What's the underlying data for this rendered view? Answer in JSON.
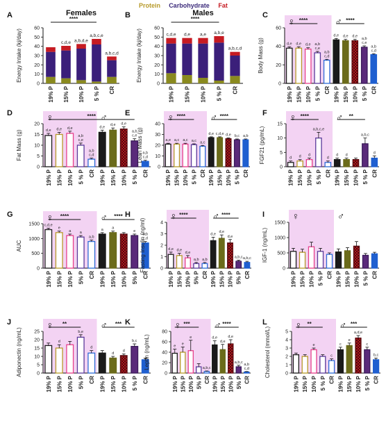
{
  "legend": {
    "items": [
      {
        "label": "Protein",
        "color": "#b79a2a"
      },
      {
        "label": "Carbohydrate",
        "color": "#3b2a7a"
      },
      {
        "label": "Fat",
        "color": "#c61b22"
      }
    ]
  },
  "chart_data": [
    {
      "type": "bar",
      "letter": "A",
      "title": "Females",
      "ylabel": "Energy Intake (kj/day)",
      "categories": [
        "19% P",
        "15% P",
        "10% P",
        "5 % P",
        "CR"
      ],
      "ylim": [
        0,
        60
      ],
      "yticks": [
        0,
        10,
        20,
        30,
        40,
        50,
        60
      ],
      "stacked": true,
      "series": [
        {
          "name": "Protein",
          "values": [
            7,
            5.5,
            3.5,
            2,
            7
          ]
        },
        {
          "name": "Carbohydrate",
          "values": [
            27,
            30,
            34,
            40,
            18
          ]
        },
        {
          "name": "Fat",
          "values": [
            5,
            5,
            5,
            6,
            4
          ]
        }
      ],
      "labels": [
        "",
        "c,d,e",
        "a,b,d,e",
        "a,b,c,e",
        "a,b,c,d"
      ],
      "sig": [
        {
          "text": "****",
          "from": 0,
          "to": 3
        }
      ]
    },
    {
      "type": "bar",
      "letter": "B",
      "title": "Males",
      "ylabel": "Energy Intake (kj/day)",
      "categories": [
        "19% P",
        "15% P",
        "10% P",
        "5 % P",
        "CR"
      ],
      "ylim": [
        0,
        60
      ],
      "yticks": [
        0,
        10,
        20,
        30,
        40,
        50,
        60
      ],
      "stacked": true,
      "series": [
        {
          "name": "Protein",
          "values": [
            11,
            9,
            6,
            3,
            8
          ]
        },
        {
          "name": "Carbohydrate",
          "values": [
            32,
            34,
            37,
            41,
            22
          ]
        },
        {
          "name": "Fat",
          "values": [
            6,
            6,
            6,
            7,
            4
          ]
        }
      ],
      "labels": [
        "c,d,e",
        "d,e",
        "a,e",
        "a,b,e",
        "a,b,c,d"
      ],
      "sig": [
        {
          "text": "****",
          "from": 0,
          "to": 3
        }
      ]
    },
    {
      "type": "bar",
      "letter": "C",
      "ylabel": "Body Mass (g)",
      "categories": [
        "19% P",
        "15% P",
        "10% P",
        "5 % P",
        "CR",
        "19% P",
        "15% P",
        "10% P",
        "5 % P",
        "CR"
      ],
      "ylim": [
        0,
        60
      ],
      "yticks": [
        0,
        20,
        40,
        60
      ],
      "values": [
        38,
        38,
        37,
        33,
        25,
        47,
        46,
        46,
        39,
        31
      ],
      "errors": [
        1.5,
        1.5,
        1.5,
        1.5,
        1,
        1.5,
        1.5,
        1.5,
        1.5,
        1
      ],
      "labels": [
        "d,e",
        "d,e",
        "d,e",
        "a,b c,e",
        "a,b c,d",
        "d,e",
        "d,e",
        "d,e",
        "a,b c,e",
        "a,b c,d"
      ],
      "sig": [
        {
          "text": "****",
          "from": 0,
          "to": 3
        },
        {
          "text": "****",
          "from": 5,
          "to": 8
        }
      ]
    },
    {
      "type": "bar",
      "letter": "D",
      "ylabel": "Fat Mass (g)",
      "categories": [
        "19% P",
        "15% P",
        "10% P",
        "5 % P",
        "CR",
        "19% P",
        "15% P",
        "10% P",
        "5 % P",
        "CR"
      ],
      "ylim": [
        0,
        20
      ],
      "yticks": [
        0,
        5,
        10,
        15,
        20
      ],
      "values": [
        14.5,
        15,
        15.5,
        10,
        3.5,
        16,
        17,
        17.5,
        12,
        2.5
      ],
      "errors": [
        1,
        1,
        1,
        1,
        0.5,
        1,
        1,
        1,
        1,
        0.5
      ],
      "labels": [
        "d,e",
        "d,e",
        "d,e",
        "a,b c,e",
        "a,b c,d",
        "d,e",
        "d,e",
        "d,e",
        "a,b c,e",
        "a,b c,d"
      ],
      "sig": [
        {
          "text": "****",
          "from": 0,
          "to": 8
        }
      ]
    },
    {
      "type": "bar",
      "letter": "E",
      "ylabel": "Lean Mass (g)",
      "categories": [
        "19% P",
        "15% P",
        "10% P",
        "5 % P",
        "CR",
        "19% P",
        "15% P",
        "10% P",
        "5 % P",
        "CR"
      ],
      "ylim": [
        0,
        40
      ],
      "yticks": [
        0,
        10,
        20,
        30,
        40
      ],
      "values": [
        21,
        21,
        21,
        20.5,
        19,
        27,
        27,
        26,
        25,
        25
      ],
      "errors": [
        0.8,
        0.8,
        0.8,
        0.8,
        0.8,
        0.8,
        0.8,
        0.8,
        0.8,
        0.8
      ],
      "labels": [
        "a,e",
        "a,c",
        "a,c",
        "a,c",
        "a,c",
        "d,e",
        "c,d,e",
        "d,e",
        "b,c",
        "a,b"
      ],
      "sig": [
        {
          "text": "****",
          "from": 0,
          "to": 3
        },
        {
          "text": "****",
          "from": 5,
          "to": 8
        }
      ]
    },
    {
      "type": "bar",
      "letter": "F",
      "ylabel": "FGF21 (pg/mL)",
      "categories": [
        "19% P",
        "15% P",
        "10% P",
        "5 % P",
        "CR",
        "19% P",
        "15% P",
        "10% P",
        "5 % P",
        "CR"
      ],
      "ylim": [
        0,
        15
      ],
      "yticks": [
        0,
        5,
        10,
        15
      ],
      "values": [
        1.5,
        2,
        2.5,
        10,
        1.5,
        2.5,
        2.5,
        2.5,
        8,
        3
      ],
      "errors": [
        0.5,
        0.5,
        0.5,
        2,
        0.5,
        0.5,
        0.5,
        0.5,
        2,
        0.8
      ],
      "labels": [
        "d",
        "d",
        "d",
        "a,b,c,e",
        "d",
        "d",
        "d",
        "",
        "a,b,c",
        "d"
      ],
      "sig": [
        {
          "text": "****",
          "from": 0,
          "to": 3
        },
        {
          "text": "**",
          "from": 5,
          "to": 8
        }
      ]
    },
    {
      "type": "bar",
      "letter": "G",
      "ylabel": "AUC",
      "categories": [
        "19% P",
        "15% P",
        "10% P",
        "5% P",
        "CR",
        "19% P",
        "15% P",
        "10% P",
        "5% P",
        "CR"
      ],
      "ylim": [
        0,
        1500
      ],
      "yticks": [
        0,
        500,
        1000,
        1500
      ],
      "values": [
        1300,
        1200,
        1100,
        1050,
        900,
        1150,
        1200,
        1150,
        1100,
        850
      ],
      "errors": [
        50,
        50,
        50,
        50,
        50,
        50,
        50,
        50,
        50,
        50
      ],
      "labels": [
        "c,d,e",
        "e",
        "a",
        "a",
        "a,b",
        "a",
        "a",
        "",
        "e",
        "a,b c,d"
      ],
      "sig": [
        {
          "text": "****",
          "from": 0,
          "to": 3
        },
        {
          "text": "****",
          "from": 5,
          "to": 8
        }
      ]
    },
    {
      "type": "bar",
      "letter": "H",
      "ylabel": "Fasting Insulin (ng/ml)",
      "categories": [
        "19% P",
        "15% P",
        "10% P",
        "5% P",
        "CR",
        "19% P",
        "15% P",
        "10% P",
        "5% P",
        "CR"
      ],
      "ylim": [
        0,
        4
      ],
      "yticks": [
        0,
        1,
        2,
        3,
        4
      ],
      "values": [
        1.2,
        1.1,
        0.9,
        0.4,
        0.4,
        2.4,
        2.6,
        2.2,
        0.6,
        0.5
      ],
      "errors": [
        0.2,
        0.2,
        0.2,
        0.1,
        0.1,
        0.3,
        0.3,
        0.3,
        0.1,
        0.1
      ],
      "labels": [
        "d,e",
        "d,e",
        "d,e",
        "a,b",
        "a,b",
        "d,e",
        "d,e",
        "d,e",
        "a,b,c",
        "a,b,c"
      ],
      "sig": [
        {
          "text": "****",
          "from": 0,
          "to": 3
        },
        {
          "text": "****",
          "from": 5,
          "to": 8
        }
      ]
    },
    {
      "type": "bar",
      "letter": "I",
      "ylabel": "IGF-1 (ng/mL)",
      "categories": [
        "19% P",
        "15% P",
        "10% P",
        "5 % P",
        "CR",
        "19% P",
        "15% P",
        "10% P",
        "5 % P",
        "CR"
      ],
      "ylim": [
        0,
        1500
      ],
      "yticks": [
        0,
        500,
        1000,
        1500
      ],
      "values": [
        550,
        520,
        700,
        550,
        450,
        530,
        570,
        720,
        420,
        470
      ],
      "errors": [
        100,
        100,
        150,
        100,
        50,
        100,
        100,
        150,
        60,
        50
      ],
      "labels": [
        "",
        "",
        "",
        "",
        "",
        "",
        "",
        "",
        "",
        ""
      ],
      "sig": []
    },
    {
      "type": "bar",
      "letter": "J",
      "ylabel": "Adiponectin (ng/mL)",
      "categories": [
        "19% P",
        "15% P",
        "10% P",
        "5% P",
        "CR",
        "19% P",
        "15% P",
        "10% P",
        "5 % P",
        "CR"
      ],
      "ylim": [
        0,
        25
      ],
      "yticks": [
        0,
        5,
        10,
        15,
        20,
        25
      ],
      "values": [
        16.5,
        15,
        17,
        21.5,
        12,
        12,
        9,
        10.5,
        16,
        8
      ],
      "errors": [
        1.5,
        2,
        2,
        1.5,
        1.5,
        1.5,
        1,
        1,
        1.5,
        1
      ],
      "labels": [
        "",
        "d",
        "",
        "b,e",
        "d",
        "",
        "d",
        "d",
        "b,c",
        ""
      ],
      "sig": [
        {
          "text": "**",
          "from": 0,
          "to": 3
        },
        {
          "text": "***",
          "from": 5,
          "to": 8
        }
      ]
    },
    {
      "type": "bar",
      "letter": "K",
      "ylabel": "Leptin (ng/mL)",
      "categories": [
        "19% P",
        "15% P",
        "10% P",
        "5% P",
        "CR",
        "19% P",
        "15% P",
        "10% P",
        "5% P",
        "CR"
      ],
      "ylim": [
        0,
        80
      ],
      "yticks": [
        0,
        20,
        40,
        60,
        80
      ],
      "values": [
        38,
        40,
        43,
        12,
        3,
        54,
        45,
        56,
        12,
        2
      ],
      "errors": [
        8,
        10,
        20,
        6,
        1,
        8,
        10,
        8,
        3,
        1
      ],
      "labels": [
        "e",
        "e",
        "e",
        "",
        "a,b,c",
        "d,e",
        "d,e",
        "d,e",
        "a,b,c",
        "a,b c,d"
      ],
      "sig": [
        {
          "text": "***",
          "from": 0,
          "to": 3
        },
        {
          "text": "****",
          "from": 5,
          "to": 8
        }
      ]
    },
    {
      "type": "bar",
      "letter": "L",
      "ylabel": "Cholesterol (mmol/L)",
      "categories": [
        "19% P",
        "15% P",
        "10% P",
        "5 % P",
        "CR",
        "19% P",
        "15% P",
        "10% P",
        "5 % P",
        "CR"
      ],
      "ylim": [
        0,
        5
      ],
      "yticks": [
        0,
        1,
        2,
        3,
        4,
        5
      ],
      "values": [
        2.2,
        2.0,
        2.8,
        2.0,
        1.5,
        2.8,
        3.3,
        4.2,
        2.8,
        1.6
      ],
      "errors": [
        0.2,
        0.2,
        0.2,
        0.2,
        0.2,
        0.3,
        0.3,
        0.3,
        0.3,
        0.2
      ],
      "labels": [
        "",
        "",
        "e",
        "",
        "c",
        "c",
        "e",
        "a,d,e",
        "c",
        "b,c"
      ],
      "sig": [
        {
          "text": "**",
          "from": 0,
          "to": 3
        },
        {
          "text": "***",
          "from": 5,
          "to": 8
        }
      ]
    }
  ],
  "styles": {
    "female_bg": "#f3d3f3",
    "male_bg": "#ffffff",
    "bars": [
      {
        "fill": "#ffffff",
        "stroke": "#1a1a1a",
        "pattern": "none"
      },
      {
        "fill": "#ffffff",
        "stroke": "#b79a2a",
        "pattern": "none"
      },
      {
        "fill": "#ffffff",
        "stroke": "#e63f8b",
        "pattern": "none"
      },
      {
        "fill": "#ffffff",
        "stroke": "#5a3a9a",
        "pattern": "none"
      },
      {
        "fill": "#ffffff",
        "stroke": "#2d6bd6",
        "pattern": "none"
      },
      {
        "fill": "#1a1a1a",
        "stroke": "#1a1a1a",
        "pattern": "none"
      },
      {
        "fill": "#6b6b1a",
        "stroke": "#6b6b1a",
        "pattern": "none"
      },
      {
        "fill": "#c61b22",
        "stroke": "#5a0b10",
        "pattern": "cross"
      },
      {
        "fill": "#5a2a7a",
        "stroke": "#3a1a5a",
        "pattern": "none"
      },
      {
        "fill": "#1f5fd0",
        "stroke": "#1f5fd0",
        "pattern": "none"
      }
    ]
  }
}
